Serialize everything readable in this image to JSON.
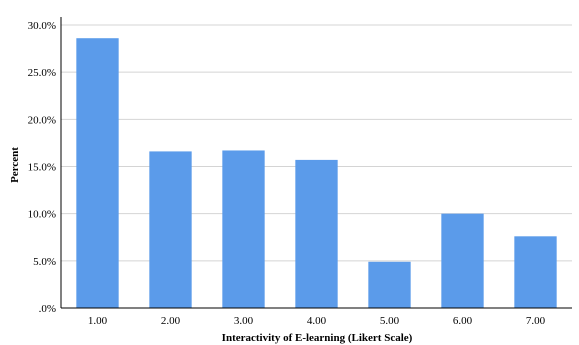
{
  "chart_data": {
    "type": "bar",
    "title": "",
    "xlabel": "Interactivity of E-learning (Likert Scale)",
    "ylabel": "Percent",
    "categories": [
      "1.00",
      "2.00",
      "3.00",
      "4.00",
      "5.00",
      "6.00",
      "7.00"
    ],
    "values": [
      28.6,
      16.6,
      16.7,
      15.7,
      4.9,
      10.0,
      7.6
    ],
    "ylim": [
      0,
      30
    ],
    "y_ticks": [
      0,
      5,
      10,
      15,
      20,
      25,
      30
    ],
    "y_tick_labels": [
      ".0%",
      "5.0%",
      "10.0%",
      "15.0%",
      "20.0%",
      "25.0%",
      "30.0%"
    ],
    "grid": true,
    "legend": "none",
    "bar_color": "#5b9bea",
    "grid_color": "#d4d4d4",
    "axis_color": "#000000"
  }
}
